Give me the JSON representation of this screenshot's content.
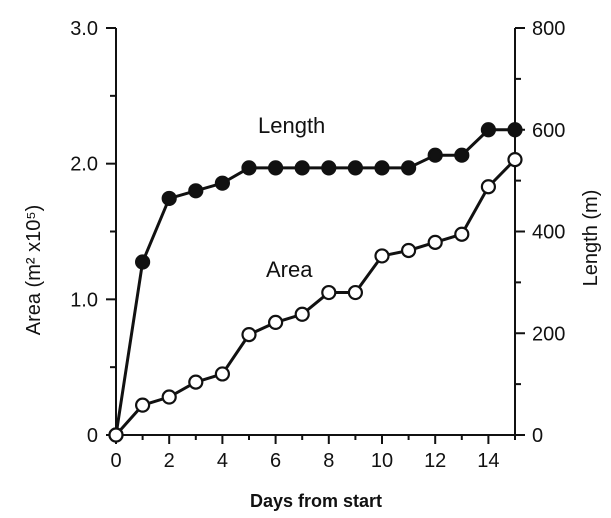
{
  "chart_data": {
    "type": "line",
    "xlabel": "Days from start",
    "ylabel_left": "Area (m² x10⁵)",
    "ylabel_right": "Length (m)",
    "x_ticks": [
      "0",
      "2",
      "4",
      "6",
      "8",
      "10",
      "12",
      "14"
    ],
    "y_left_ticks": [
      "0",
      "1.0",
      "2.0",
      "3.0"
    ],
    "y_right_ticks": [
      "0",
      "200",
      "400",
      "600",
      "800"
    ],
    "xlim": [
      0,
      15
    ],
    "ylim_left": [
      0,
      3.0
    ],
    "ylim_right": [
      0,
      800
    ],
    "grid": false,
    "series": [
      {
        "name": "Length",
        "axis": "right",
        "marker": "filled-circle",
        "x": [
          0,
          1,
          2,
          3,
          4,
          5,
          6,
          7,
          8,
          9,
          10,
          11,
          12,
          13,
          14,
          15
        ],
        "values": [
          0,
          340,
          465,
          480,
          495,
          525,
          525,
          525,
          525,
          525,
          525,
          525,
          550,
          550,
          600,
          600
        ]
      },
      {
        "name": "Area",
        "axis": "left",
        "marker": "open-circle",
        "x": [
          0,
          1,
          2,
          3,
          4,
          5,
          6,
          7,
          8,
          9,
          10,
          11,
          12,
          13,
          14,
          15
        ],
        "values": [
          0,
          0.22,
          0.28,
          0.39,
          0.45,
          0.74,
          0.83,
          0.89,
          1.05,
          1.05,
          1.32,
          1.36,
          1.42,
          1.48,
          1.83,
          2.03
        ]
      }
    ]
  }
}
